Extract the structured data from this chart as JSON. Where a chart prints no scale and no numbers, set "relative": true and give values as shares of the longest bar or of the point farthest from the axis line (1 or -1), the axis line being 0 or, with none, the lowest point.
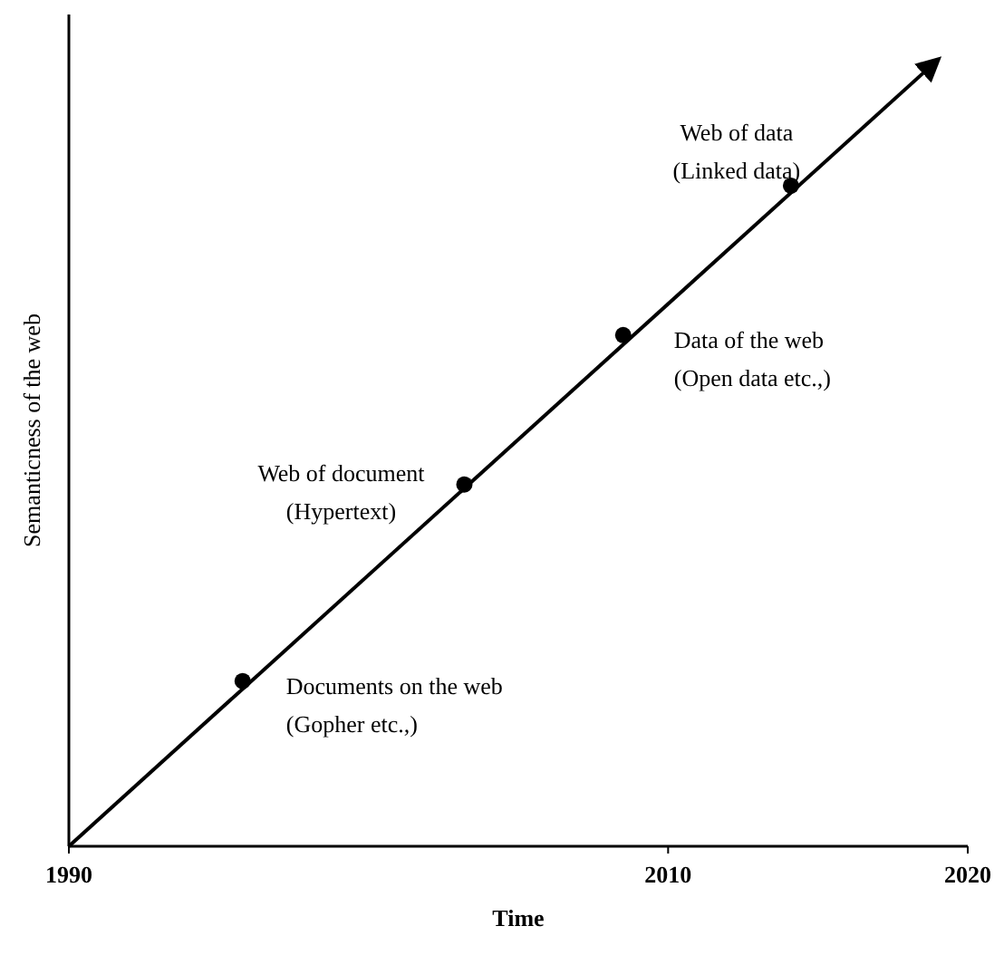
{
  "chart_data": {
    "type": "line",
    "xlabel": "Time",
    "ylabel": "Semanticness of the web",
    "relative": true,
    "xlim": [
      1990,
      2020
    ],
    "xticks": [
      1990,
      2010,
      2020
    ],
    "grid": false,
    "series": [
      {
        "color": "#000000",
        "x": [
          1990,
          2019.0
        ],
        "values": [
          0,
          1
        ],
        "marker": "none"
      },
      {
        "type": "scatter",
        "color": "#000000",
        "x": [
          1995.8,
          2003.2,
          2008.5,
          2014.1
        ],
        "values": [
          0.21,
          0.46,
          0.65,
          0.84
        ],
        "marker": "circle"
      }
    ],
    "annotations": [
      {
        "text": "Documents on the web\n(Gopher etc.,)",
        "x": 1995.8,
        "y": 0.21
      },
      {
        "text": "Web of document\n(Hypertext)",
        "x": 2003.2,
        "y": 0.46
      },
      {
        "text": "Data of the web\n(Open data etc.,)",
        "x": 2008.5,
        "y": 0.65
      },
      {
        "text": "Web of data\n(Linked data)",
        "x": 2014.1,
        "y": 0.84
      }
    ]
  }
}
